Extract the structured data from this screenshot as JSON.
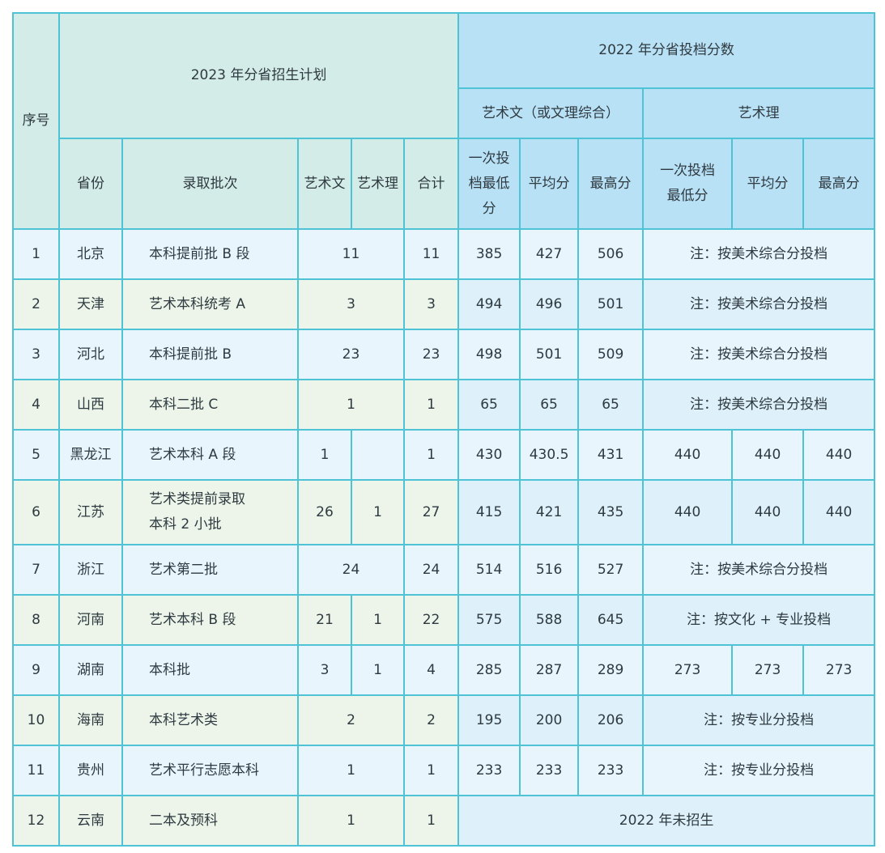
{
  "header": {
    "index": "序号",
    "plan_title": "2023 年分省招生计划",
    "score_title": "2022 年分省投档分数",
    "arts_lit": "艺术文（或文理综合）",
    "arts_sci": "艺术理",
    "province": "省份",
    "batch": "录取批次",
    "plan_lit": "艺术文",
    "plan_sci": "艺术理",
    "total": "合计",
    "min_lit": "一次投\n档最低\n分",
    "avg_lit": "平均分",
    "max_lit": "最高分",
    "min_sci": "一次投档\n最低分",
    "avg_sci": "平均分",
    "max_sci": "最高分"
  },
  "rows": [
    {
      "no": "1",
      "province": "北京",
      "batch": "本科提前批 B 段",
      "plan": "11",
      "total": "11",
      "min": "385",
      "avg": "427",
      "max": "506",
      "note": "注：按美术综合分投档"
    },
    {
      "no": "2",
      "province": "天津",
      "batch": "艺术本科统考 A",
      "plan": "3",
      "total": "3",
      "min": "494",
      "avg": "496",
      "max": "501",
      "note": "注：按美术综合分投档"
    },
    {
      "no": "3",
      "province": "河北",
      "batch": "本科提前批 B",
      "plan": "23",
      "total": "23",
      "min": "498",
      "avg": "501",
      "max": "509",
      "note": "注：按美术综合分投档"
    },
    {
      "no": "4",
      "province": "山西",
      "batch": "本科二批 C",
      "plan": "1",
      "total": "1",
      "min": "65",
      "avg": "65",
      "max": "65",
      "note": "注：按美术综合分投档"
    },
    {
      "no": "5",
      "province": "黑龙江",
      "batch": "艺术本科 A 段",
      "lit": "1",
      "sci": "",
      "total": "1",
      "min": "430",
      "avg": "430.5",
      "max": "431",
      "smin": "440",
      "savg": "440",
      "smax": "440"
    },
    {
      "no": "6",
      "province": "江苏",
      "batch": "艺术类提前录取\n本科 2 小批",
      "lit": "26",
      "sci": "1",
      "total": "27",
      "min": "415",
      "avg": "421",
      "max": "435",
      "smin": "440",
      "savg": "440",
      "smax": "440"
    },
    {
      "no": "7",
      "province": "浙江",
      "batch": "艺术第二批",
      "plan": "24",
      "total": "24",
      "min": "514",
      "avg": "516",
      "max": "527",
      "note": "注：按美术综合分投档"
    },
    {
      "no": "8",
      "province": "河南",
      "batch": "艺术本科 B 段",
      "lit": "21",
      "sci": "1",
      "total": "22",
      "min": "575",
      "avg": "588",
      "max": "645",
      "note": "注：按文化 + 专业投档"
    },
    {
      "no": "9",
      "province": "湖南",
      "batch": "本科批",
      "lit": "3",
      "sci": "1",
      "total": "4",
      "min": "285",
      "avg": "287",
      "max": "289",
      "smin": "273",
      "savg": "273",
      "smax": "273"
    },
    {
      "no": "10",
      "province": "海南",
      "batch": "本科艺术类",
      "plan": "2",
      "total": "2",
      "min": "195",
      "avg": "200",
      "max": "206",
      "note": "注：按专业分投档"
    },
    {
      "no": "11",
      "province": "贵州",
      "batch": "艺术平行志愿本科",
      "plan": "1",
      "total": "1",
      "min": "233",
      "avg": "233",
      "max": "233",
      "note": "注：按专业分投档"
    },
    {
      "no": "12",
      "province": "云南",
      "batch": "二本及预科",
      "plan": "1",
      "total": "1",
      "note": "2022 年未招生"
    }
  ]
}
